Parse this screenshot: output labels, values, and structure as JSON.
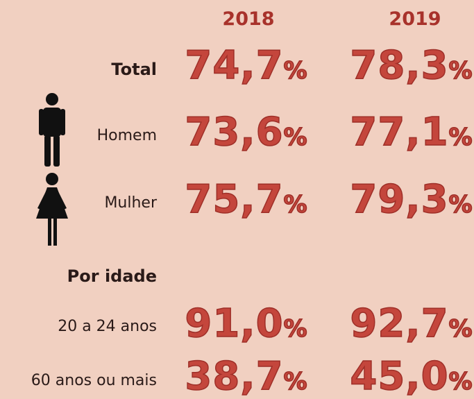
{
  "columns": [
    "2018",
    "2019"
  ],
  "rows": [
    {
      "label": "Total",
      "values": [
        {
          "number": "74,7",
          "unit": "%"
        },
        {
          "number": "78,3",
          "unit": "%"
        }
      ]
    },
    {
      "label": "Homem",
      "values": [
        {
          "number": "73,6",
          "unit": "%"
        },
        {
          "number": "77,1",
          "unit": "%"
        }
      ]
    },
    {
      "label": "Mulher",
      "values": [
        {
          "number": "75,7",
          "unit": "%"
        },
        {
          "number": "79,3",
          "unit": "%"
        }
      ]
    }
  ],
  "section": {
    "title": "Por idade",
    "rows": [
      {
        "label": "20 a 24 anos",
        "values": [
          {
            "number": "91,0",
            "unit": "%"
          },
          {
            "number": "92,7",
            "unit": "%"
          }
        ]
      },
      {
        "label": "60 anos ou mais",
        "values": [
          {
            "number": "38,7",
            "unit": "%"
          },
          {
            "number": "45,0",
            "unit": "%"
          }
        ]
      }
    ]
  }
}
